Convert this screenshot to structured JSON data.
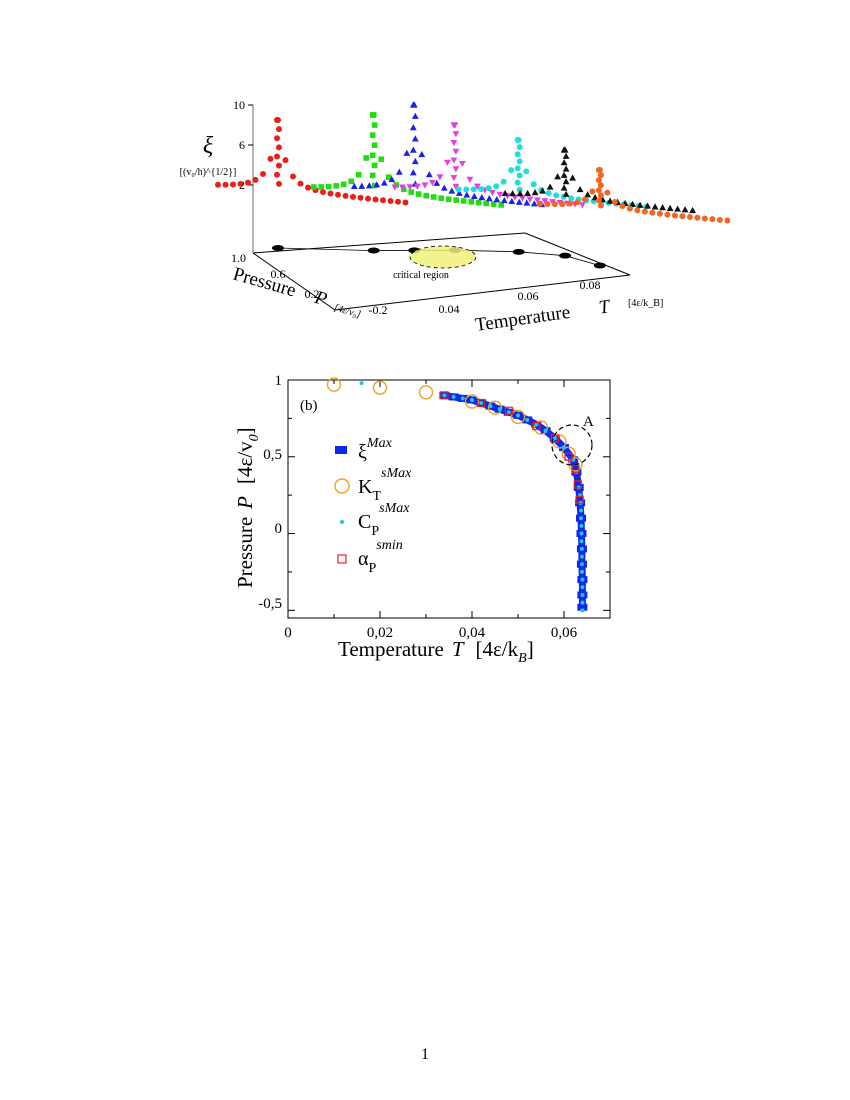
{
  "page": {
    "number": "1"
  },
  "chart_data": [
    {
      "type": "scatter3d",
      "panel": "a",
      "zlabel": {
        "symbol": "ξ",
        "unit": "[(v₀/h)^{1/2}]"
      },
      "xlabel": {
        "text": "Pressure",
        "symbol": "P",
        "unit": "[4ε/v₀]"
      },
      "ylabel": {
        "text": "Temperature",
        "symbol": "T",
        "unit": "[4ε/k_B]"
      },
      "z_ticks": [
        "10",
        "6",
        "2"
      ],
      "p_ticks": [
        "1.0",
        "0.6",
        "0.2",
        "-0.2"
      ],
      "t_ticks": [
        "0.04",
        "0.06",
        "0.08"
      ],
      "annotation": "critical region",
      "series": [
        {
          "color": "#e8201a",
          "marker": "circle",
          "pressure": 1.0,
          "t_peak": 0.035,
          "xi_peak": 8.5
        },
        {
          "color": "#22dd11",
          "marker": "square",
          "pressure": 0.7,
          "t_peak": 0.044,
          "xi_peak": 9.0
        },
        {
          "color": "#1a22e8",
          "marker": "triangle-up",
          "pressure": 0.6,
          "t_peak": 0.048,
          "xi_peak": 10.0
        },
        {
          "color": "#e040e0",
          "marker": "triangle-down",
          "pressure": 0.5,
          "t_peak": 0.052,
          "xi_peak": 8.0
        },
        {
          "color": "#22dddd",
          "marker": "circle",
          "pressure": 0.3,
          "t_peak": 0.058,
          "xi_peak": 6.5
        },
        {
          "color": "#111111",
          "marker": "triangle-up",
          "pressure": 0.1,
          "t_peak": 0.062,
          "xi_peak": 5.5
        },
        {
          "color": "#f26522",
          "marker": "circle",
          "pressure": -0.2,
          "t_peak": 0.064,
          "xi_peak": 3.5
        }
      ],
      "projection_points": [
        {
          "pressure": 1.0,
          "temperature": 0.035
        },
        {
          "pressure": 0.7,
          "temperature": 0.044
        },
        {
          "pressure": 0.6,
          "temperature": 0.048
        },
        {
          "pressure": 0.5,
          "temperature": 0.052
        },
        {
          "pressure": 0.3,
          "temperature": 0.058
        },
        {
          "pressure": 0.1,
          "temperature": 0.062
        },
        {
          "pressure": -0.2,
          "temperature": 0.064
        }
      ]
    },
    {
      "type": "scatter",
      "panel": "b",
      "panel_label": "(b)",
      "xlabel": {
        "text": "Temperature",
        "symbol": "T",
        "unit": "[4ε/k",
        "unit_sub": "B",
        "unit_close": "]"
      },
      "ylabel": {
        "text": "Pressure",
        "symbol": "P",
        "unit": "[4ε/v",
        "unit_sub": "0",
        "unit_close": "]"
      },
      "xlim": [
        0,
        0.07
      ],
      "ylim": [
        -0.55,
        1.0
      ],
      "x_ticks": [
        "0",
        "0,02",
        "0,04",
        "0,06"
      ],
      "y_ticks": [
        "1",
        "0,5",
        "0",
        "-0,5"
      ],
      "annotation": "A",
      "legend_position": "left",
      "series": [
        {
          "name": "ξ",
          "name_sup": "Max",
          "name_sub": "",
          "color": "#1028e8",
          "marker": "filled-rect",
          "points": [
            [
              0.034,
              0.9
            ],
            [
              0.036,
              0.89
            ],
            [
              0.038,
              0.88
            ],
            [
              0.04,
              0.87
            ],
            [
              0.042,
              0.85
            ],
            [
              0.044,
              0.83
            ],
            [
              0.046,
              0.81
            ],
            [
              0.048,
              0.79
            ],
            [
              0.05,
              0.77
            ],
            [
              0.052,
              0.74
            ],
            [
              0.054,
              0.71
            ],
            [
              0.056,
              0.67
            ],
            [
              0.058,
              0.62
            ],
            [
              0.06,
              0.56
            ],
            [
              0.062,
              0.48
            ],
            [
              0.0627,
              0.4
            ],
            [
              0.0632,
              0.3
            ],
            [
              0.0635,
              0.2
            ],
            [
              0.0637,
              0.1
            ],
            [
              0.0638,
              0.0
            ],
            [
              0.0639,
              -0.1
            ],
            [
              0.0639,
              -0.2
            ],
            [
              0.064,
              -0.3
            ],
            [
              0.064,
              -0.4
            ],
            [
              0.064,
              -0.48
            ]
          ]
        },
        {
          "name": "K",
          "name_sup": "sMax",
          "name_sub": "T",
          "color": "#f0a020",
          "marker": "open-circle",
          "points": [
            [
              0.01,
              0.97
            ],
            [
              0.02,
              0.95
            ],
            [
              0.03,
              0.92
            ],
            [
              0.04,
              0.86
            ],
            [
              0.045,
              0.82
            ],
            [
              0.05,
              0.76
            ],
            [
              0.055,
              0.69
            ],
            [
              0.059,
              0.6
            ],
            [
              0.061,
              0.52
            ],
            [
              0.0625,
              0.45
            ]
          ]
        },
        {
          "name": "C",
          "name_sup": "sMax",
          "name_sub": "P",
          "color": "#1ec8e8",
          "marker": "dot",
          "points": [
            [
              0.016,
              0.98
            ],
            [
              0.034,
              0.9
            ],
            [
              0.036,
              0.89
            ],
            [
              0.038,
              0.88
            ],
            [
              0.04,
              0.87
            ],
            [
              0.042,
              0.85
            ],
            [
              0.044,
              0.83
            ],
            [
              0.046,
              0.81
            ],
            [
              0.048,
              0.79
            ],
            [
              0.05,
              0.77
            ],
            [
              0.052,
              0.74
            ],
            [
              0.054,
              0.71
            ],
            [
              0.056,
              0.67
            ],
            [
              0.058,
              0.62
            ],
            [
              0.06,
              0.56
            ],
            [
              0.062,
              0.48
            ],
            [
              0.0627,
              0.4
            ],
            [
              0.0632,
              0.3
            ],
            [
              0.0635,
              0.25
            ],
            [
              0.0636,
              0.2
            ],
            [
              0.0637,
              0.15
            ],
            [
              0.0637,
              0.1
            ],
            [
              0.0638,
              0.05
            ],
            [
              0.0638,
              0.0
            ],
            [
              0.0638,
              -0.05
            ],
            [
              0.0639,
              -0.1
            ],
            [
              0.0639,
              -0.15
            ],
            [
              0.0639,
              -0.2
            ],
            [
              0.0639,
              -0.25
            ],
            [
              0.064,
              -0.3
            ],
            [
              0.064,
              -0.35
            ],
            [
              0.064,
              -0.4
            ],
            [
              0.064,
              -0.45
            ],
            [
              0.064,
              -0.5
            ]
          ]
        },
        {
          "name": "α",
          "name_sup": "smin",
          "name_sub": "P",
          "color": "#e82020",
          "marker": "open-square",
          "points": [
            [
              0.034,
              0.9
            ],
            [
              0.042,
              0.85
            ],
            [
              0.048,
              0.8
            ],
            [
              0.054,
              0.7
            ],
            [
              0.058,
              0.62
            ],
            [
              0.061,
              0.5
            ],
            [
              0.0625,
              0.42
            ],
            [
              0.063,
              0.32
            ],
            [
              0.0634,
              0.22
            ]
          ]
        }
      ]
    }
  ]
}
